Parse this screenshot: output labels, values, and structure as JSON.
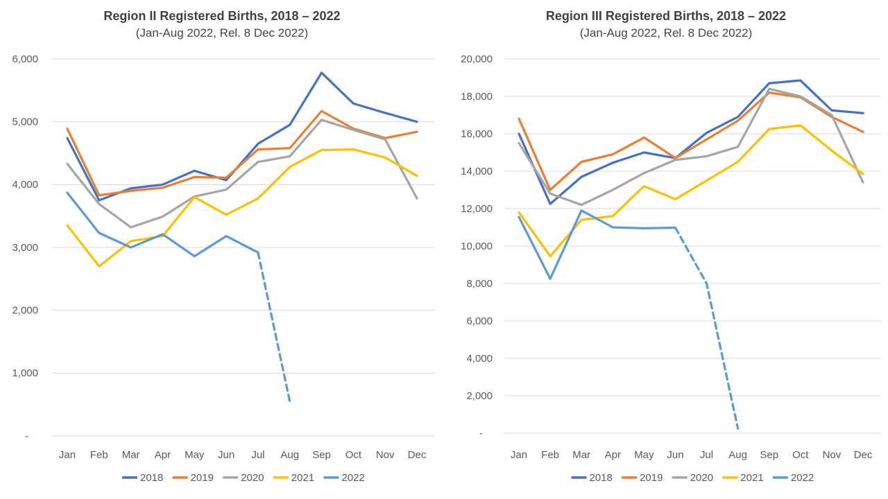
{
  "page": {
    "background": "#ffffff",
    "gridline_color": "#D9D9D9",
    "text_color": "#595959",
    "title_color": "#404040"
  },
  "chart_data": [
    {
      "type": "line",
      "title": "Region II Registered Births, 2018 – 2022",
      "subtitle": "(Jan-Aug 2022, Rel. 8 Dec 2022)",
      "categories": [
        "Jan",
        "Feb",
        "Mar",
        "Apr",
        "May",
        "Jun",
        "Jul",
        "Aug",
        "Sep",
        "Oct",
        "Nov",
        "Dec"
      ],
      "y_axis": {
        "min": 0,
        "max": 6000,
        "step": 1000,
        "grid": true,
        "tick_labels": [
          "6,000",
          "5,000",
          "4,000",
          "3,000",
          "2,000",
          "1,000",
          "-"
        ]
      },
      "legend_position": "bottom",
      "legend": [
        "2018",
        "2019",
        "2020",
        "2021",
        "2022"
      ],
      "series": [
        {
          "name": "2018",
          "color": "#4472C4",
          "values": [
            4740,
            3750,
            3940,
            4000,
            4220,
            4070,
            4650,
            4950,
            5780,
            5290,
            5140,
            5000
          ]
        },
        {
          "name": "2019",
          "color": "#ED7D31",
          "values": [
            4890,
            3830,
            3900,
            3950,
            4120,
            4110,
            4560,
            4580,
            5170,
            4890,
            4740,
            4840
          ]
        },
        {
          "name": "2020",
          "color": "#A5A5A5",
          "values": [
            4330,
            3690,
            3320,
            3490,
            3810,
            3920,
            4360,
            4450,
            5030,
            4870,
            4720,
            3780
          ]
        },
        {
          "name": "2021",
          "color": "#FFC000",
          "values": [
            3350,
            2700,
            3100,
            3180,
            3800,
            3520,
            3780,
            4280,
            4550,
            4560,
            4430,
            4140
          ]
        },
        {
          "name": "2022",
          "color": "#5B9BD5",
          "dashed_from_index": 6,
          "values": [
            3870,
            3230,
            3000,
            3210,
            2860,
            3180,
            2920,
            550,
            null,
            null,
            null,
            null
          ]
        }
      ]
    },
    {
      "type": "line",
      "title": "Region III Registered Births, 2018 – 2022",
      "subtitle": "(Jan-Aug 2022, Rel. 8 Dec 2022)",
      "categories": [
        "Jan",
        "Feb",
        "Mar",
        "Apr",
        "May",
        "Jun",
        "Jul",
        "Aug",
        "Sep",
        "Oct",
        "Nov",
        "Dec"
      ],
      "y_axis": {
        "min": 0,
        "max": 20000,
        "step": 2000,
        "grid": true,
        "tick_labels": [
          "20,000",
          "18,000",
          "16,000",
          "14,000",
          "12,000",
          "10,000",
          "8,000",
          "6,000",
          "4,000",
          "2,000",
          "-"
        ]
      },
      "legend_position": "bottom",
      "legend": [
        "2018",
        "2019",
        "2020",
        "2021",
        "2022"
      ],
      "series": [
        {
          "name": "2018",
          "color": "#4472C4",
          "values": [
            16000,
            12250,
            13700,
            14450,
            15000,
            14700,
            16050,
            16900,
            18700,
            18850,
            17250,
            17100
          ]
        },
        {
          "name": "2019",
          "color": "#ED7D31",
          "values": [
            16800,
            13000,
            14500,
            14900,
            15800,
            14700,
            15700,
            16700,
            18200,
            17950,
            16900,
            16100
          ]
        },
        {
          "name": "2020",
          "color": "#A5A5A5",
          "values": [
            15500,
            12800,
            12200,
            13000,
            13900,
            14600,
            14800,
            15300,
            18400,
            18000,
            17000,
            13400
          ]
        },
        {
          "name": "2021",
          "color": "#FFC000",
          "values": [
            11800,
            9450,
            11400,
            11600,
            13200,
            12500,
            13500,
            14500,
            16250,
            16450,
            15100,
            13850
          ]
        },
        {
          "name": "2022",
          "color": "#5B9BD5",
          "dashed_from_index": 5,
          "values": [
            11550,
            8250,
            11900,
            11000,
            10950,
            10980,
            8000,
            250,
            null,
            null,
            null,
            null
          ]
        }
      ]
    }
  ]
}
